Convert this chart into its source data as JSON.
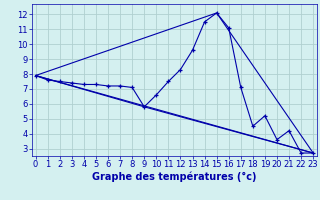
{
  "title": "Graphe des températures (°c)",
  "bg_color": "#d4f0f0",
  "line_color": "#0000aa",
  "grid_color": "#b0d0d0",
  "x_ticks": [
    0,
    1,
    2,
    3,
    4,
    5,
    6,
    7,
    8,
    9,
    10,
    11,
    12,
    13,
    14,
    15,
    16,
    17,
    18,
    19,
    20,
    21,
    22,
    23
  ],
  "y_ticks": [
    3,
    4,
    5,
    6,
    7,
    8,
    9,
    10,
    11,
    12
  ],
  "xlim": [
    -0.3,
    23.3
  ],
  "ylim": [
    2.5,
    12.7
  ],
  "series1": {
    "x": [
      0,
      1,
      2,
      3,
      4,
      5,
      6,
      7,
      8,
      9,
      10,
      11,
      12,
      13,
      14,
      15,
      16,
      17,
      18,
      19,
      20,
      21,
      22,
      23
    ],
    "y": [
      7.9,
      7.6,
      7.5,
      7.4,
      7.3,
      7.3,
      7.2,
      7.2,
      7.1,
      5.8,
      6.6,
      7.5,
      8.3,
      9.6,
      11.5,
      12.1,
      11.1,
      7.1,
      4.5,
      5.2,
      3.6,
      4.2,
      2.7,
      2.7
    ]
  },
  "line2_x": [
    0,
    23
  ],
  "line2_y": [
    7.9,
    2.7
  ],
  "line3_x": [
    0,
    9,
    23
  ],
  "line3_y": [
    7.9,
    5.8,
    2.7
  ],
  "line4_x": [
    0,
    15,
    23
  ],
  "line4_y": [
    7.9,
    12.1,
    2.7
  ],
  "xlabel_fontsize": 7,
  "tick_fontsize": 6,
  "lw": 0.8
}
